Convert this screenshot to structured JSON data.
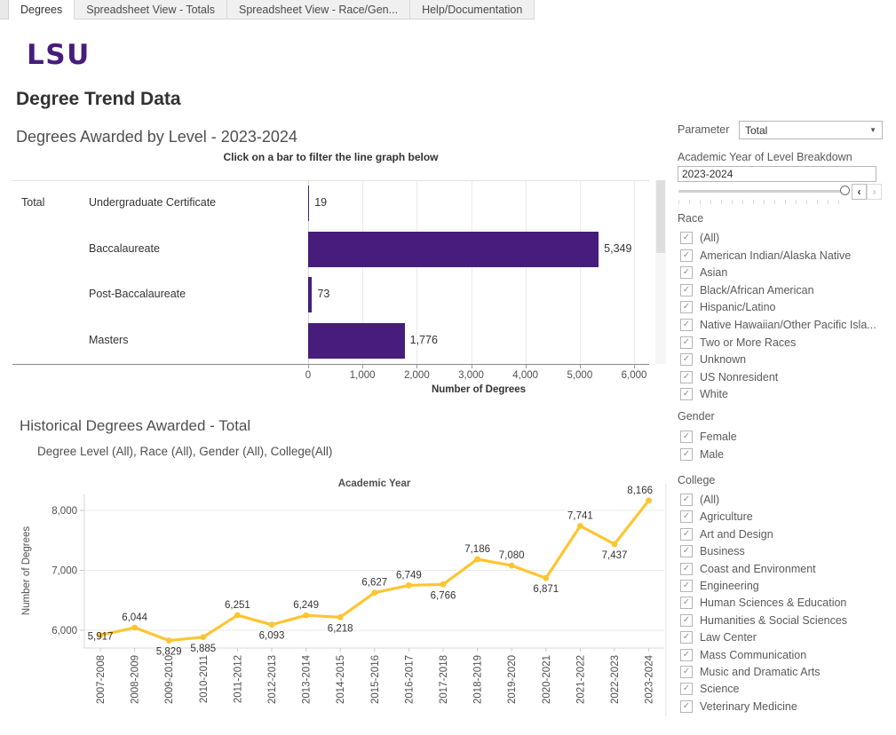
{
  "tabs": [
    {
      "label": "Degrees",
      "active": true
    },
    {
      "label": "Spreadsheet View - Totals",
      "active": false
    },
    {
      "label": "Spreadsheet View - Race/Gen...",
      "active": false
    },
    {
      "label": "Help/Documentation",
      "active": false
    }
  ],
  "header": {
    "logo_text": "LSU",
    "page_title": "Degree Trend Data"
  },
  "bar_section": {
    "title": "Degrees Awarded by Level - 2023-2024",
    "instruction": "Click on a bar to filter the line graph below",
    "group_label": "Total",
    "xlabel": "Number of Degrees"
  },
  "line_section": {
    "title": "Historical Degrees Awarded - Total",
    "subtitle": "Degree Level (All), Race (All), Gender (All), College(All)",
    "top_axis_label": "Academic Year",
    "ylabel": "Number of Degrees"
  },
  "sidebar": {
    "parameter_label": "Parameter",
    "parameter_value": "Total",
    "year_filter_label": "Academic Year of Level Breakdown",
    "year_filter_value": "2023-2024",
    "groups": [
      {
        "title": "Race",
        "checked": true,
        "options": [
          "(All)",
          "American Indian/Alaska Native",
          "Asian",
          "Black/African American",
          "Hispanic/Latino",
          "Native Hawaiian/Other Pacific Isla...",
          "Two or More Races",
          "Unknown",
          "US Nonresident",
          "White"
        ]
      },
      {
        "title": "Gender",
        "checked": true,
        "options": [
          "Female",
          "Male"
        ]
      },
      {
        "title": "College",
        "checked": true,
        "options": [
          "(All)",
          "Agriculture",
          "Art and Design",
          "Business",
          "Coast and Environment",
          "Engineering",
          "Human Sciences & Education",
          "Humanities & Social Sciences",
          "Law Center",
          "Mass Communication",
          "Music and Dramatic Arts",
          "Science",
          "Veterinary Medicine"
        ]
      }
    ]
  },
  "colors": {
    "purple": "#461D7C",
    "gold": "#FDC530"
  },
  "chart_data": [
    {
      "type": "bar",
      "orientation": "horizontal",
      "title": "Degrees Awarded by Level - 2023-2024",
      "group": "Total",
      "categories": [
        "Undergraduate Certificate",
        "Baccalaureate",
        "Post-Baccalaureate",
        "Masters"
      ],
      "values": [
        19,
        5349,
        73,
        1776
      ],
      "value_labels": [
        "19",
        "5,349",
        "73",
        "1,776"
      ],
      "xlabel": "Number of Degrees",
      "xlim": [
        0,
        6300
      ],
      "xticks": [
        0,
        1000,
        2000,
        3000,
        4000,
        5000,
        6000
      ],
      "xtick_labels": [
        "0",
        "1,000",
        "2,000",
        "3,000",
        "4,000",
        "5,000",
        "6,000"
      ],
      "bar_color": "#461D7C",
      "grid": true
    },
    {
      "type": "line",
      "title": "Historical Degrees Awarded - Total",
      "subtitle": "Degree Level (All), Race (All), Gender (All), College(All)",
      "xlabel": "Academic Year",
      "ylabel": "Number of Degrees",
      "x": [
        "2007-2008",
        "2008-2009",
        "2009-2010",
        "2010-2011",
        "2011-2012",
        "2012-2013",
        "2013-2014",
        "2014-2015",
        "2015-2016",
        "2016-2017",
        "2017-2018",
        "2018-2019",
        "2019-2020",
        "2020-2021",
        "2021-2022",
        "2022-2023",
        "2023-2024"
      ],
      "values": [
        5917,
        6044,
        5829,
        5885,
        6251,
        6093,
        6249,
        6218,
        6627,
        6749,
        6766,
        7186,
        7080,
        6871,
        7741,
        7437,
        8166
      ],
      "value_labels": [
        "5,917",
        "6,044",
        "5,829",
        "5,885",
        "6,251",
        "6,093",
        "6,249",
        "6,218",
        "6,627",
        "6,749",
        "6,766",
        "7,186",
        "7,080",
        "6,871",
        "7,741",
        "7,437",
        "8,166"
      ],
      "ylim": [
        5700,
        8300
      ],
      "yticks": [
        6000,
        7000,
        8000
      ],
      "ytick_labels": [
        "6,000",
        "7,000",
        "8,000"
      ],
      "line_color": "#FDC530",
      "grid": true,
      "legend": "none"
    }
  ]
}
